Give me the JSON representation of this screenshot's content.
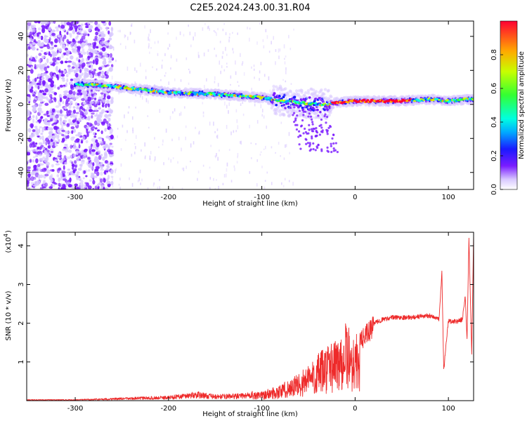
{
  "title": "C2E5.2024.243.00.31.R04",
  "chart_data": [
    {
      "type": "heatmap",
      "xlabel": "Height of straight line (km)",
      "ylabel": "Frequency (Hz)",
      "xlim": [
        -352,
        127
      ],
      "ylim": [
        -50,
        49
      ],
      "xticks": [
        "-300",
        "-200",
        "-100",
        "0",
        "100"
      ],
      "xtick_values": [
        -300,
        -200,
        -100,
        0,
        100
      ],
      "yticks": [
        "-40",
        "-20",
        "0",
        "20",
        "40"
      ],
      "ytick_values": [
        -40,
        -20,
        0,
        20,
        40
      ],
      "colorbar": {
        "label": "Normalized spectral amplitude",
        "ticks": [
          "0.0",
          "0.2",
          "0.4",
          "0.6",
          "0.8"
        ],
        "tick_values": [
          0.0,
          0.2,
          0.4,
          0.6,
          0.8
        ],
        "range": [
          0,
          1
        ]
      },
      "ridge": {
        "x": [
          -300,
          -270,
          -250,
          -200,
          -150,
          -100,
          -80,
          -60,
          -40,
          -30,
          -20,
          0,
          50,
          80,
          100,
          120,
          127
        ],
        "y": [
          12,
          11,
          10,
          7,
          6,
          4,
          2,
          1,
          0,
          0,
          1,
          2,
          2,
          3,
          2,
          3,
          3
        ]
      },
      "noise_region_x": [
        -352,
        -265
      ]
    },
    {
      "type": "line",
      "xlabel": "Height of straight line (km)",
      "ylabel": "SNR (10 * v/v)",
      "yunit_multiplier": "(x10",
      "yunit_exponent": "4",
      "xlim": [
        -352,
        127
      ],
      "ylim": [
        0,
        4.35
      ],
      "xticks": [
        "-300",
        "-200",
        "-100",
        "0",
        "100"
      ],
      "xtick_values": [
        -300,
        -200,
        -100,
        0,
        100
      ],
      "yticks": [
        "1",
        "2",
        "3",
        "4"
      ],
      "ytick_values": [
        1,
        2,
        3,
        4
      ],
      "color": "#ee2a2a",
      "series": [
        {
          "x": [
            -352,
            -300,
            -250,
            -200,
            -170,
            -150,
            -120,
            -100,
            -80,
            -60,
            -40,
            -20,
            -10,
            0,
            10,
            20,
            30,
            40,
            60,
            80,
            90,
            93,
            95,
            100,
            110,
            115,
            118,
            120,
            122,
            125,
            127
          ],
          "y": [
            0.02,
            0.02,
            0.05,
            0.08,
            0.15,
            0.1,
            0.12,
            0.2,
            0.35,
            0.6,
            1.0,
            1.4,
            1.7,
            1.4,
            1.75,
            2.0,
            2.1,
            2.15,
            2.15,
            2.2,
            2.1,
            3.3,
            0.8,
            2.05,
            2.05,
            2.1,
            2.7,
            1.6,
            4.2,
            1.2,
            4.3
          ]
        }
      ]
    }
  ]
}
